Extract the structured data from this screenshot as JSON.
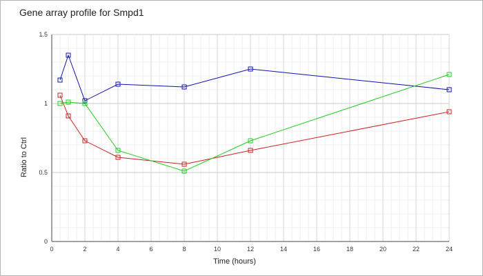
{
  "chart_data": {
    "type": "line",
    "title": "Gene array profile for Smpd1",
    "xlabel": "Time (hours)",
    "ylabel": "Ratio to Ctrl",
    "xlim": [
      0,
      24
    ],
    "ylim": [
      0,
      1.5
    ],
    "xticks": [
      0,
      2,
      4,
      6,
      8,
      10,
      12,
      14,
      16,
      18,
      20,
      22,
      24
    ],
    "yticks": [
      0,
      0.5,
      1,
      1.5
    ],
    "ytick_labels": [
      "0",
      "0.5",
      "1",
      "1.5"
    ],
    "grid": true,
    "legend": "none",
    "series": [
      {
        "color": "#1010b0",
        "x": [
          0.5,
          1,
          2,
          4,
          8,
          12,
          24
        ],
        "y": [
          1.17,
          1.35,
          1.02,
          1.14,
          1.12,
          1.25,
          1.1
        ]
      },
      {
        "color": "#cc2020",
        "x": [
          0.5,
          1,
          2,
          4,
          8,
          12,
          24
        ],
        "y": [
          1.06,
          0.91,
          0.73,
          0.61,
          0.56,
          0.66,
          0.94
        ]
      },
      {
        "color": "#22cc22",
        "x": [
          0.5,
          1,
          2,
          4,
          8,
          12,
          24
        ],
        "y": [
          1.0,
          1.01,
          1.0,
          0.66,
          0.51,
          0.73,
          1.21
        ]
      }
    ]
  }
}
